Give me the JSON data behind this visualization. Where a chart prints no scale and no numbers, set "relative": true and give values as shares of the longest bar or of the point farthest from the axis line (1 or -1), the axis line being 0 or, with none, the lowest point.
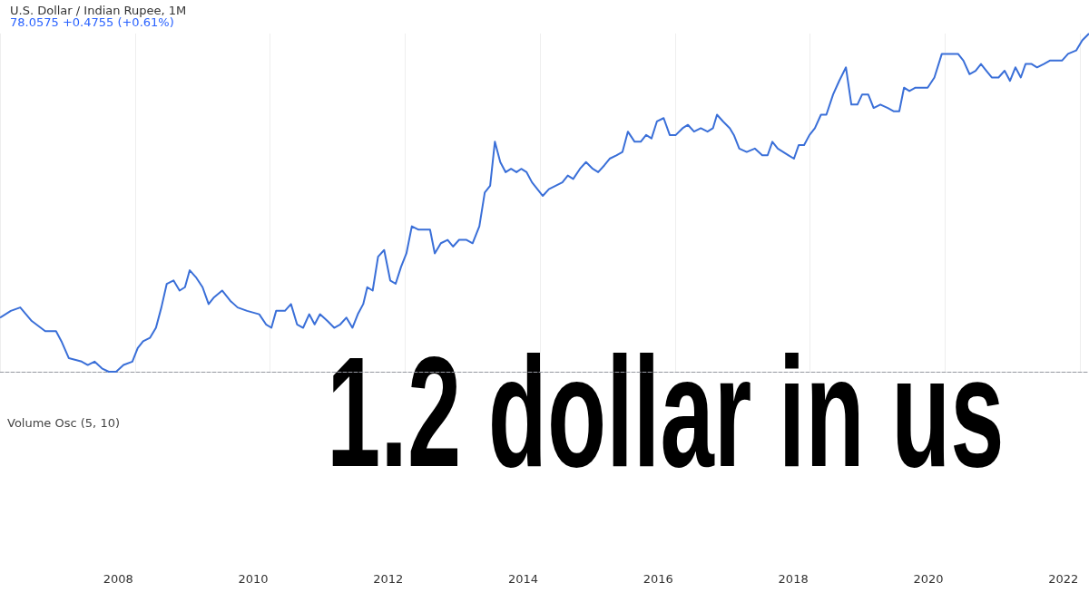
{
  "chart_data": {
    "type": "line",
    "title": "U.S. Dollar / Indian Rupee, 1M",
    "subtitle": "78.0575 +0.4755 (+0.61%)",
    "relative": true,
    "grid": "x",
    "marker": "none",
    "line_style": "solid",
    "xlim": [
      2006.25,
      2022.38
    ],
    "xticks": [
      2008,
      2010,
      2012,
      2014,
      2016,
      2018,
      2020,
      2022
    ],
    "annotations": [
      "Volume Osc (5, 10)",
      "1.2 dollar in us"
    ],
    "x": [
      2006.25,
      2006.41,
      2006.55,
      2006.72,
      2006.92,
      2007.08,
      2007.16,
      2007.27,
      2007.46,
      2007.55,
      2007.65,
      2007.76,
      2007.86,
      2007.97,
      2008.08,
      2008.21,
      2008.29,
      2008.37,
      2008.47,
      2008.56,
      2008.64,
      2008.72,
      2008.82,
      2008.91,
      2008.99,
      2009.06,
      2009.15,
      2009.25,
      2009.34,
      2009.42,
      2009.54,
      2009.66,
      2009.77,
      2009.91,
      2010.09,
      2010.19,
      2010.27,
      2010.34,
      2010.47,
      2010.56,
      2010.65,
      2010.74,
      2010.83,
      2010.91,
      2010.99,
      2011.1,
      2011.2,
      2011.29,
      2011.38,
      2011.47,
      2011.55,
      2011.63,
      2011.69,
      2011.77,
      2011.85,
      2011.94,
      2012.03,
      2012.11,
      2012.19,
      2012.27,
      2012.35,
      2012.45,
      2012.54,
      2012.62,
      2012.69,
      2012.78,
      2012.88,
      2012.96,
      2013.05,
      2013.16,
      2013.25,
      2013.35,
      2013.43,
      2013.51,
      2013.58,
      2013.66,
      2013.74,
      2013.82,
      2013.9,
      2013.97,
      2014.05,
      2014.13,
      2014.21,
      2014.29,
      2014.38,
      2014.48,
      2014.58,
      2014.66,
      2014.74,
      2014.84,
      2014.93,
      2015.03,
      2015.11,
      2015.2,
      2015.28,
      2015.38,
      2015.47,
      2015.55,
      2015.65,
      2015.74,
      2015.82,
      2015.9,
      2015.98,
      2016.08,
      2016.17,
      2016.26,
      2016.36,
      2016.44,
      2016.53,
      2016.63,
      2016.73,
      2016.81,
      2016.87,
      2016.96,
      2017.06,
      2017.12,
      2017.2,
      2017.31,
      2017.43,
      2017.54,
      2017.62,
      2017.69,
      2017.77,
      2017.85,
      2017.93,
      2018.01,
      2018.08,
      2018.16,
      2018.24,
      2018.32,
      2018.41,
      2018.49,
      2018.59,
      2018.68,
      2018.78,
      2018.86,
      2018.95,
      2019.02,
      2019.11,
      2019.19,
      2019.29,
      2019.4,
      2019.49,
      2019.57,
      2019.64,
      2019.72,
      2019.81,
      2019.89,
      2019.99,
      2020.09,
      2020.2,
      2020.32,
      2020.44,
      2020.52,
      2020.61,
      2020.7,
      2020.78,
      2020.86,
      2020.94,
      2021.04,
      2021.13,
      2021.21,
      2021.29,
      2021.37,
      2021.44,
      2021.53,
      2021.61,
      2021.71,
      2021.8,
      2021.9,
      2021.98,
      2022.07,
      2022.19,
      2022.28,
      2022.38
    ],
    "series": [
      {
        "color": "#3a6fd8",
        "values": [
          0.16,
          0.18,
          0.19,
          0.15,
          0.12,
          0.12,
          0.09,
          0.04,
          0.03,
          0.02,
          0.03,
          0.01,
          0.0,
          0.0,
          0.02,
          0.03,
          0.07,
          0.09,
          0.1,
          0.13,
          0.19,
          0.26,
          0.27,
          0.24,
          0.25,
          0.3,
          0.28,
          0.25,
          0.2,
          0.22,
          0.24,
          0.21,
          0.19,
          0.18,
          0.17,
          0.14,
          0.13,
          0.18,
          0.18,
          0.2,
          0.14,
          0.13,
          0.17,
          0.14,
          0.17,
          0.15,
          0.13,
          0.14,
          0.16,
          0.13,
          0.17,
          0.2,
          0.25,
          0.24,
          0.34,
          0.36,
          0.27,
          0.26,
          0.31,
          0.35,
          0.43,
          0.42,
          0.42,
          0.42,
          0.35,
          0.38,
          0.39,
          0.37,
          0.39,
          0.39,
          0.38,
          0.43,
          0.53,
          0.55,
          0.68,
          0.62,
          0.59,
          0.6,
          0.59,
          0.6,
          0.59,
          0.56,
          0.54,
          0.52,
          0.54,
          0.55,
          0.56,
          0.58,
          0.57,
          0.6,
          0.62,
          0.6,
          0.59,
          0.61,
          0.63,
          0.64,
          0.65,
          0.71,
          0.68,
          0.68,
          0.7,
          0.69,
          0.74,
          0.75,
          0.7,
          0.7,
          0.72,
          0.73,
          0.71,
          0.72,
          0.71,
          0.72,
          0.76,
          0.74,
          0.72,
          0.7,
          0.66,
          0.65,
          0.66,
          0.64,
          0.64,
          0.68,
          0.66,
          0.65,
          0.64,
          0.63,
          0.67,
          0.67,
          0.7,
          0.72,
          0.76,
          0.76,
          0.82,
          0.86,
          0.9,
          0.79,
          0.79,
          0.82,
          0.82,
          0.78,
          0.79,
          0.78,
          0.77,
          0.77,
          0.84,
          0.83,
          0.84,
          0.84,
          0.84,
          0.87,
          0.94,
          0.94,
          0.94,
          0.92,
          0.88,
          0.89,
          0.91,
          0.89,
          0.87,
          0.87,
          0.89,
          0.86,
          0.9,
          0.87,
          0.91,
          0.91,
          0.9,
          0.91,
          0.92,
          0.92,
          0.92,
          0.94,
          0.95,
          0.98,
          1.0
        ]
      }
    ]
  }
}
